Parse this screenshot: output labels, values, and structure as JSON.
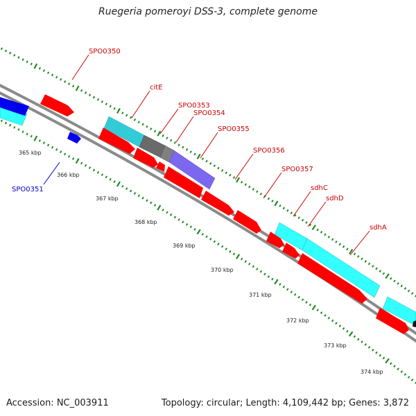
{
  "title": "Ruegeria pomeroyi DSS-3, complete genome",
  "footer": {
    "accession": "Accession: NC_003911",
    "summary": "Topology: circular; Length: 4,109,442 bp; Genes: 3,872"
  },
  "colors": {
    "backbone": "#8a8a8a",
    "tick_dots": "#1f8a1f",
    "red_feature": "#ff0000",
    "cyan_feature": "#33ffff",
    "gray_feature": "#6a6a6a",
    "purple_feature": "#7b68ee",
    "blue_feature": "#0000ee",
    "label_red": "#cc0000",
    "label_blue": "#0000cc"
  },
  "scale_labels": [
    "365 kbp",
    "366 kbp",
    "367 kbp",
    "368 kbp",
    "369 kbp",
    "370 kbp",
    "371 kbp",
    "372 kbp",
    "373 kbp",
    "374 kbp"
  ],
  "gene_labels": [
    {
      "name": "SPO0350",
      "color": "red"
    },
    {
      "name": "SPO0351",
      "color": "blue"
    },
    {
      "name": "citE",
      "color": "red"
    },
    {
      "name": "SPO0353",
      "color": "red"
    },
    {
      "name": "SPO0354",
      "color": "red"
    },
    {
      "name": "SPO0355",
      "color": "red"
    },
    {
      "name": "SPO0356",
      "color": "red"
    },
    {
      "name": "SPO0357",
      "color": "red"
    },
    {
      "name": "sdhC",
      "color": "red"
    },
    {
      "name": "sdhD",
      "color": "red"
    },
    {
      "name": "sdhA",
      "color": "red"
    }
  ]
}
